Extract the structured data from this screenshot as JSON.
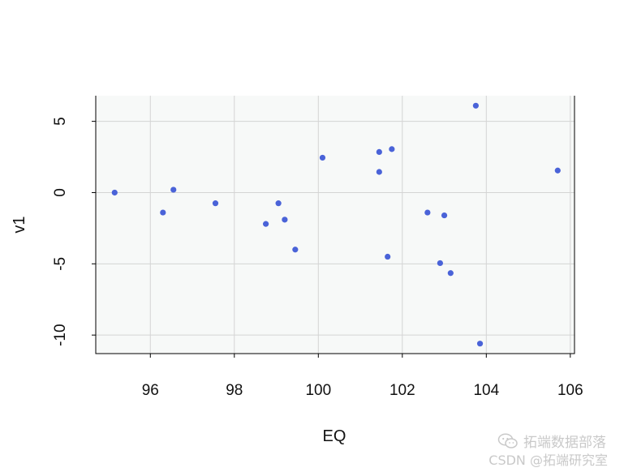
{
  "chart_data": {
    "type": "scatter",
    "xlabel": "EQ",
    "ylabel": "v1",
    "xlim": [
      94.7,
      106.1
    ],
    "ylim": [
      -11.3,
      6.8
    ],
    "x_ticks": [
      96,
      98,
      100,
      102,
      104,
      106
    ],
    "x_tick_labels": [
      "96",
      "98",
      "100",
      "102",
      "104",
      "106"
    ],
    "y_ticks": [
      -10,
      -5,
      0,
      5
    ],
    "y_tick_labels": [
      "-10",
      "-5",
      "0",
      "5"
    ],
    "grid": true,
    "point_color": "#4a63d8",
    "panel_color": "#f7f9f8",
    "grid_color": "#d4d4d4",
    "points": [
      {
        "x": 95.15,
        "y": 0.0
      },
      {
        "x": 96.3,
        "y": -1.4
      },
      {
        "x": 96.55,
        "y": 0.2
      },
      {
        "x": 97.55,
        "y": -0.75
      },
      {
        "x": 98.75,
        "y": -2.2
      },
      {
        "x": 99.05,
        "y": -0.75
      },
      {
        "x": 99.2,
        "y": -1.9
      },
      {
        "x": 99.45,
        "y": -4.0
      },
      {
        "x": 100.1,
        "y": 2.45
      },
      {
        "x": 101.45,
        "y": 2.85
      },
      {
        "x": 101.45,
        "y": 1.45
      },
      {
        "x": 101.65,
        "y": -4.5
      },
      {
        "x": 101.75,
        "y": 3.05
      },
      {
        "x": 102.6,
        "y": -1.4
      },
      {
        "x": 102.9,
        "y": -4.95
      },
      {
        "x": 103.0,
        "y": -1.6
      },
      {
        "x": 103.15,
        "y": -5.65
      },
      {
        "x": 103.75,
        "y": 6.1
      },
      {
        "x": 103.85,
        "y": -10.6
      },
      {
        "x": 105.7,
        "y": 1.55
      }
    ]
  },
  "watermark": {
    "line1": "拓端数据部落",
    "line2": "CSDN @拓端研究室",
    "icon": "wechat-icon"
  }
}
